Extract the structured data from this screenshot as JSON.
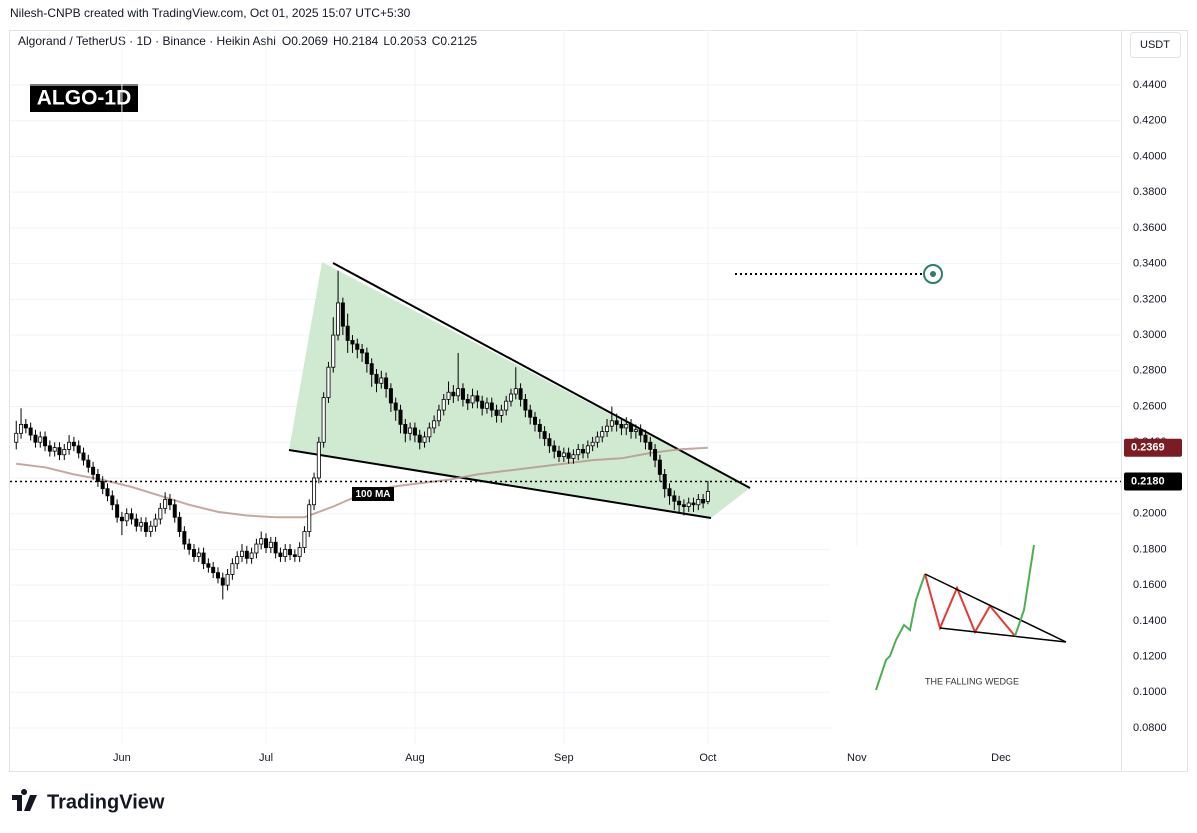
{
  "chart_data": {
    "type": "candlestick",
    "credit": "Nilesh-CNPB created with TradingView.com, Oct 01, 2025 15:07 UTC+5:30",
    "title": "Algorand / TetherUS · 1D · Binance · Heikin Ashi",
    "ohlc_legend": [
      "O0.2069",
      "H0.2184",
      "L0.2053",
      "C0.2125"
    ],
    "badge": "ALGO-1D",
    "currency": "USDT",
    "brand": "TradingView",
    "inset_label": "THE FALLING WEDGE",
    "up_color": "#ffffff",
    "down_color": "#000000",
    "x": [
      0,
      1,
      2,
      3,
      4,
      5,
      6,
      7,
      8,
      9,
      10,
      11,
      12,
      13,
      14,
      15,
      16,
      17,
      18,
      19,
      20,
      21,
      22,
      23,
      24,
      25,
      26,
      27,
      28,
      29,
      30,
      31,
      32,
      33,
      34,
      35,
      36,
      37,
      38,
      39,
      40,
      41,
      42,
      43,
      44,
      45,
      46,
      47,
      48,
      49,
      50,
      51,
      52,
      53,
      54,
      55,
      56,
      57,
      58,
      59,
      60,
      61,
      62,
      63,
      64,
      65,
      66,
      67,
      68,
      69,
      70,
      71,
      72,
      73,
      74,
      75,
      76,
      77,
      78,
      79,
      80,
      81,
      82,
      83,
      84,
      85,
      86,
      87,
      88,
      89,
      90,
      91,
      92,
      93,
      94,
      95,
      96,
      97,
      98,
      99,
      100,
      101,
      102,
      103,
      104,
      105,
      106,
      107,
      108,
      109,
      110,
      111,
      112,
      113,
      114,
      115,
      116,
      117,
      118,
      119,
      120,
      121,
      122,
      123,
      124,
      125,
      126,
      127,
      128,
      129,
      130,
      131,
      132,
      133,
      134,
      135,
      136,
      137,
      138,
      139,
      140,
      141,
      142,
      143,
      144
    ],
    "ohlc": [
      [
        0.24,
        0.252,
        0.236,
        0.245
      ],
      [
        0.245,
        0.259,
        0.242,
        0.25
      ],
      [
        0.25,
        0.253,
        0.245,
        0.248
      ],
      [
        0.248,
        0.251,
        0.241,
        0.244
      ],
      [
        0.244,
        0.247,
        0.237,
        0.24
      ],
      [
        0.24,
        0.246,
        0.237,
        0.243
      ],
      [
        0.243,
        0.246,
        0.235,
        0.238
      ],
      [
        0.238,
        0.241,
        0.232,
        0.235
      ],
      [
        0.235,
        0.24,
        0.232,
        0.237
      ],
      [
        0.237,
        0.24,
        0.23,
        0.233
      ],
      [
        0.233,
        0.239,
        0.23,
        0.236
      ],
      [
        0.236,
        0.244,
        0.233,
        0.24
      ],
      [
        0.24,
        0.243,
        0.235,
        0.238
      ],
      [
        0.238,
        0.241,
        0.231,
        0.234
      ],
      [
        0.234,
        0.237,
        0.227,
        0.23
      ],
      [
        0.23,
        0.233,
        0.223,
        0.226
      ],
      [
        0.226,
        0.229,
        0.219,
        0.222
      ],
      [
        0.222,
        0.225,
        0.215,
        0.218
      ],
      [
        0.218,
        0.221,
        0.211,
        0.214
      ],
      [
        0.214,
        0.217,
        0.207,
        0.21
      ],
      [
        0.21,
        0.213,
        0.202,
        0.205
      ],
      [
        0.205,
        0.208,
        0.195,
        0.198
      ],
      [
        0.198,
        0.201,
        0.188,
        0.196
      ],
      [
        0.196,
        0.203,
        0.193,
        0.2
      ],
      [
        0.2,
        0.203,
        0.194,
        0.197
      ],
      [
        0.197,
        0.2,
        0.19,
        0.193
      ],
      [
        0.193,
        0.198,
        0.19,
        0.195
      ],
      [
        0.195,
        0.198,
        0.187,
        0.19
      ],
      [
        0.19,
        0.196,
        0.187,
        0.193
      ],
      [
        0.193,
        0.2,
        0.19,
        0.197
      ],
      [
        0.197,
        0.206,
        0.194,
        0.203
      ],
      [
        0.203,
        0.212,
        0.2,
        0.208
      ],
      [
        0.208,
        0.211,
        0.202,
        0.205
      ],
      [
        0.205,
        0.208,
        0.195,
        0.198
      ],
      [
        0.198,
        0.201,
        0.187,
        0.19
      ],
      [
        0.19,
        0.193,
        0.18,
        0.183
      ],
      [
        0.183,
        0.186,
        0.177,
        0.18
      ],
      [
        0.18,
        0.183,
        0.173,
        0.176
      ],
      [
        0.176,
        0.181,
        0.173,
        0.178
      ],
      [
        0.178,
        0.181,
        0.169,
        0.172
      ],
      [
        0.172,
        0.175,
        0.167,
        0.17
      ],
      [
        0.17,
        0.173,
        0.164,
        0.167
      ],
      [
        0.167,
        0.17,
        0.161,
        0.164
      ],
      [
        0.164,
        0.167,
        0.152,
        0.16
      ],
      [
        0.16,
        0.169,
        0.157,
        0.166
      ],
      [
        0.166,
        0.175,
        0.163,
        0.172
      ],
      [
        0.172,
        0.179,
        0.169,
        0.176
      ],
      [
        0.176,
        0.183,
        0.173,
        0.179
      ],
      [
        0.179,
        0.182,
        0.172,
        0.175
      ],
      [
        0.175,
        0.181,
        0.172,
        0.178
      ],
      [
        0.178,
        0.186,
        0.175,
        0.183
      ],
      [
        0.183,
        0.19,
        0.18,
        0.186
      ],
      [
        0.186,
        0.189,
        0.178,
        0.181
      ],
      [
        0.181,
        0.187,
        0.178,
        0.184
      ],
      [
        0.184,
        0.187,
        0.175,
        0.178
      ],
      [
        0.178,
        0.181,
        0.173,
        0.176
      ],
      [
        0.176,
        0.183,
        0.173,
        0.18
      ],
      [
        0.18,
        0.183,
        0.174,
        0.177
      ],
      [
        0.177,
        0.18,
        0.173,
        0.176
      ],
      [
        0.176,
        0.184,
        0.173,
        0.181
      ],
      [
        0.181,
        0.193,
        0.178,
        0.19
      ],
      [
        0.19,
        0.208,
        0.187,
        0.205
      ],
      [
        0.205,
        0.223,
        0.202,
        0.22
      ],
      [
        0.22,
        0.243,
        0.217,
        0.24
      ],
      [
        0.24,
        0.268,
        0.237,
        0.265
      ],
      [
        0.265,
        0.285,
        0.262,
        0.282
      ],
      [
        0.282,
        0.31,
        0.279,
        0.3
      ],
      [
        0.3,
        0.336,
        0.297,
        0.318
      ],
      [
        0.318,
        0.321,
        0.3,
        0.305
      ],
      [
        0.305,
        0.312,
        0.29,
        0.297
      ],
      [
        0.297,
        0.3,
        0.29,
        0.295
      ],
      [
        0.295,
        0.298,
        0.287,
        0.292
      ],
      [
        0.292,
        0.295,
        0.285,
        0.29
      ],
      [
        0.29,
        0.293,
        0.279,
        0.284
      ],
      [
        0.284,
        0.287,
        0.271,
        0.278
      ],
      [
        0.278,
        0.281,
        0.268,
        0.273
      ],
      [
        0.273,
        0.28,
        0.27,
        0.276
      ],
      [
        0.276,
        0.279,
        0.265,
        0.27
      ],
      [
        0.27,
        0.273,
        0.257,
        0.262
      ],
      [
        0.262,
        0.265,
        0.252,
        0.258
      ],
      [
        0.258,
        0.261,
        0.245,
        0.25
      ],
      [
        0.25,
        0.253,
        0.24,
        0.245
      ],
      [
        0.245,
        0.251,
        0.241,
        0.248
      ],
      [
        0.248,
        0.251,
        0.24,
        0.244
      ],
      [
        0.244,
        0.247,
        0.236,
        0.24
      ],
      [
        0.24,
        0.246,
        0.237,
        0.243
      ],
      [
        0.243,
        0.251,
        0.24,
        0.248
      ],
      [
        0.248,
        0.255,
        0.245,
        0.252
      ],
      [
        0.252,
        0.261,
        0.249,
        0.258
      ],
      [
        0.258,
        0.267,
        0.255,
        0.264
      ],
      [
        0.264,
        0.274,
        0.261,
        0.268
      ],
      [
        0.268,
        0.272,
        0.262,
        0.266
      ],
      [
        0.266,
        0.29,
        0.263,
        0.27
      ],
      [
        0.27,
        0.273,
        0.26,
        0.264
      ],
      [
        0.264,
        0.267,
        0.258,
        0.262
      ],
      [
        0.262,
        0.27,
        0.259,
        0.266
      ],
      [
        0.266,
        0.269,
        0.259,
        0.263
      ],
      [
        0.263,
        0.266,
        0.255,
        0.259
      ],
      [
        0.259,
        0.265,
        0.256,
        0.262
      ],
      [
        0.262,
        0.265,
        0.254,
        0.258
      ],
      [
        0.258,
        0.261,
        0.251,
        0.255
      ],
      [
        0.255,
        0.261,
        0.251,
        0.258
      ],
      [
        0.258,
        0.266,
        0.255,
        0.263
      ],
      [
        0.263,
        0.27,
        0.26,
        0.267
      ],
      [
        0.267,
        0.282,
        0.264,
        0.27
      ],
      [
        0.27,
        0.273,
        0.26,
        0.264
      ],
      [
        0.264,
        0.267,
        0.254,
        0.258
      ],
      [
        0.258,
        0.261,
        0.25,
        0.254
      ],
      [
        0.254,
        0.257,
        0.246,
        0.25
      ],
      [
        0.25,
        0.253,
        0.242,
        0.246
      ],
      [
        0.246,
        0.249,
        0.238,
        0.242
      ],
      [
        0.242,
        0.245,
        0.234,
        0.238
      ],
      [
        0.238,
        0.241,
        0.231,
        0.235
      ],
      [
        0.235,
        0.238,
        0.229,
        0.232
      ],
      [
        0.232,
        0.237,
        0.229,
        0.234
      ],
      [
        0.234,
        0.237,
        0.228,
        0.231
      ],
      [
        0.231,
        0.236,
        0.228,
        0.233
      ],
      [
        0.233,
        0.239,
        0.23,
        0.236
      ],
      [
        0.236,
        0.239,
        0.231,
        0.234
      ],
      [
        0.234,
        0.241,
        0.231,
        0.238
      ],
      [
        0.238,
        0.243,
        0.235,
        0.24
      ],
      [
        0.24,
        0.246,
        0.237,
        0.243
      ],
      [
        0.243,
        0.249,
        0.24,
        0.246
      ],
      [
        0.246,
        0.253,
        0.243,
        0.249
      ],
      [
        0.249,
        0.26,
        0.246,
        0.252
      ],
      [
        0.252,
        0.256,
        0.246,
        0.25
      ],
      [
        0.25,
        0.253,
        0.244,
        0.248
      ],
      [
        0.248,
        0.254,
        0.244,
        0.25
      ],
      [
        0.25,
        0.253,
        0.242,
        0.246
      ],
      [
        0.246,
        0.25,
        0.242,
        0.247
      ],
      [
        0.247,
        0.25,
        0.24,
        0.244
      ],
      [
        0.244,
        0.247,
        0.236,
        0.24
      ],
      [
        0.24,
        0.243,
        0.232,
        0.236
      ],
      [
        0.236,
        0.239,
        0.226,
        0.23
      ],
      [
        0.23,
        0.233,
        0.218,
        0.222
      ],
      [
        0.222,
        0.225,
        0.209,
        0.214
      ],
      [
        0.214,
        0.217,
        0.205,
        0.21
      ],
      [
        0.21,
        0.213,
        0.202,
        0.207
      ],
      [
        0.207,
        0.21,
        0.2,
        0.205
      ],
      [
        0.205,
        0.208,
        0.199,
        0.204
      ],
      [
        0.204,
        0.209,
        0.201,
        0.206
      ],
      [
        0.206,
        0.209,
        0.201,
        0.205
      ],
      [
        0.205,
        0.211,
        0.202,
        0.208
      ],
      [
        0.208,
        0.211,
        0.203,
        0.206
      ],
      [
        0.2069,
        0.2184,
        0.2053,
        0.2125
      ]
    ],
    "ma": {
      "name": "100 MA",
      "color": "#b8928a",
      "label_color": "#7b1c24",
      "x": [
        0,
        6,
        12,
        18,
        24,
        30,
        36,
        42,
        48,
        54,
        60,
        66,
        72,
        78,
        84,
        90,
        96,
        102,
        108,
        114,
        120,
        126,
        132,
        138,
        144
      ],
      "values": [
        0.228,
        0.226,
        0.222,
        0.219,
        0.215,
        0.21,
        0.205,
        0.201,
        0.199,
        0.198,
        0.198,
        0.204,
        0.211,
        0.215,
        0.217,
        0.219,
        0.222,
        0.224,
        0.226,
        0.228,
        0.23,
        0.231,
        0.234,
        0.236,
        0.2369
      ]
    },
    "last_price": {
      "value": 0.218,
      "label": "0.2180"
    },
    "xlim": [
      -1.3,
      230
    ],
    "xticks": [
      {
        "value": 22,
        "label": "Jun"
      },
      {
        "value": 52,
        "label": "Jul"
      },
      {
        "value": 83,
        "label": "Aug"
      },
      {
        "value": 114,
        "label": "Sep"
      },
      {
        "value": 144,
        "label": "Oct"
      },
      {
        "value": 175,
        "label": "Nov"
      },
      {
        "value": 205,
        "label": "Dec"
      }
    ],
    "ylim": [
      0.0705,
      0.4708
    ],
    "yticks": [
      {
        "value": 0.08,
        "label": "0.0800"
      },
      {
        "value": 0.1,
        "label": "0.1000"
      },
      {
        "value": 0.12,
        "label": "0.1200"
      },
      {
        "value": 0.14,
        "label": "0.1400"
      },
      {
        "value": 0.16,
        "label": "0.1600"
      },
      {
        "value": 0.18,
        "label": "0.1800"
      },
      {
        "value": 0.2,
        "label": "0.2000"
      },
      {
        "value": 0.22,
        "label": "0.2200"
      },
      {
        "value": 0.24,
        "label": "0.2400"
      },
      {
        "value": 0.26,
        "label": "0.2600"
      },
      {
        "value": 0.28,
        "label": "0.2800"
      },
      {
        "value": 0.3,
        "label": "0.3000"
      },
      {
        "value": 0.32,
        "label": "0.3200"
      },
      {
        "value": 0.34,
        "label": "0.3400"
      },
      {
        "value": 0.36,
        "label": "0.3600"
      },
      {
        "value": 0.38,
        "label": "0.3800"
      },
      {
        "value": 0.4,
        "label": "0.4000"
      },
      {
        "value": 0.42,
        "label": "0.4200"
      },
      {
        "value": 0.44,
        "label": "0.4400"
      }
    ],
    "grid": true
  }
}
